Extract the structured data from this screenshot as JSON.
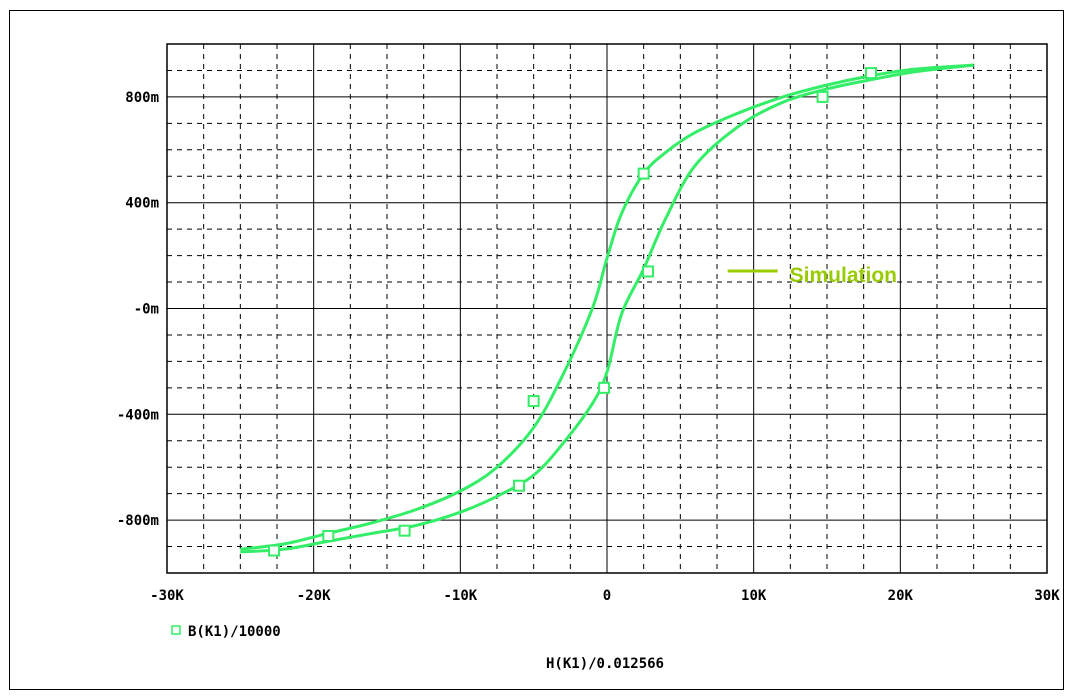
{
  "colors": {
    "trace": "#33ee66",
    "annotation": "#99cc00",
    "grid": "#000000",
    "text": "#000000",
    "background": "#ffffff"
  },
  "chart_data": {
    "type": "line",
    "title": "",
    "xlabel": "H(K1)/0.012566",
    "ylabel": "",
    "xlim": [
      -30000,
      30000
    ],
    "ylim": [
      -1000,
      1000
    ],
    "y_unit": "m",
    "grid": true,
    "x_ticks": [
      -30000,
      -20000,
      -10000,
      0,
      10000,
      20000,
      30000
    ],
    "x_tick_labels": [
      "-30K",
      "-20K",
      "-10K",
      "0",
      "10K",
      "20K",
      "30K"
    ],
    "y_ticks": [
      800,
      400,
      0,
      -400,
      -800
    ],
    "y_tick_labels": [
      "800m",
      "400m",
      "-0m",
      "-400m",
      "-800m"
    ],
    "legend": {
      "position": "bottom-left",
      "marker": "square",
      "label": "B(K1)/10000"
    },
    "annotation": {
      "text": "Simulation",
      "x": 13000,
      "y": 100
    },
    "series": [
      {
        "name": "B(K1)/10000",
        "branch": "upper",
        "x": [
          -25000,
          -22000,
          -19000,
          -16000,
          -13000,
          -10000,
          -7500,
          -5000,
          -3000,
          -1000,
          0,
          1000,
          2500,
          4000,
          6000,
          9000,
          12000,
          15000,
          18000,
          21000,
          25000
        ],
        "y": [
          -910,
          -890,
          -850,
          -810,
          -760,
          -690,
          -600,
          -450,
          -250,
          0,
          190,
          360,
          510,
          590,
          665,
          740,
          800,
          845,
          880,
          905,
          920
        ],
        "markers": [
          [
            -5000,
            -350
          ],
          [
            2500,
            510
          ],
          [
            18000,
            890
          ]
        ]
      },
      {
        "name": "B(K1)/10000",
        "branch": "lower",
        "x": [
          -25000,
          -22000,
          -19000,
          -16000,
          -13000,
          -10000,
          -7500,
          -5000,
          -3000,
          -1000,
          0,
          1000,
          2500,
          4000,
          6000,
          9000,
          12000,
          15000,
          18000,
          21000,
          25000
        ],
        "y": [
          -920,
          -910,
          -880,
          -850,
          -820,
          -770,
          -710,
          -630,
          -510,
          -360,
          -240,
          -20,
          150,
          340,
          540,
          690,
          780,
          830,
          865,
          895,
          920
        ],
        "markers": [
          [
            -22700,
            -915
          ],
          [
            -19000,
            -860
          ],
          [
            -13800,
            -840
          ],
          [
            -6000,
            -670
          ],
          [
            -200,
            -300
          ],
          [
            2800,
            140
          ],
          [
            14700,
            800
          ]
        ]
      }
    ]
  }
}
